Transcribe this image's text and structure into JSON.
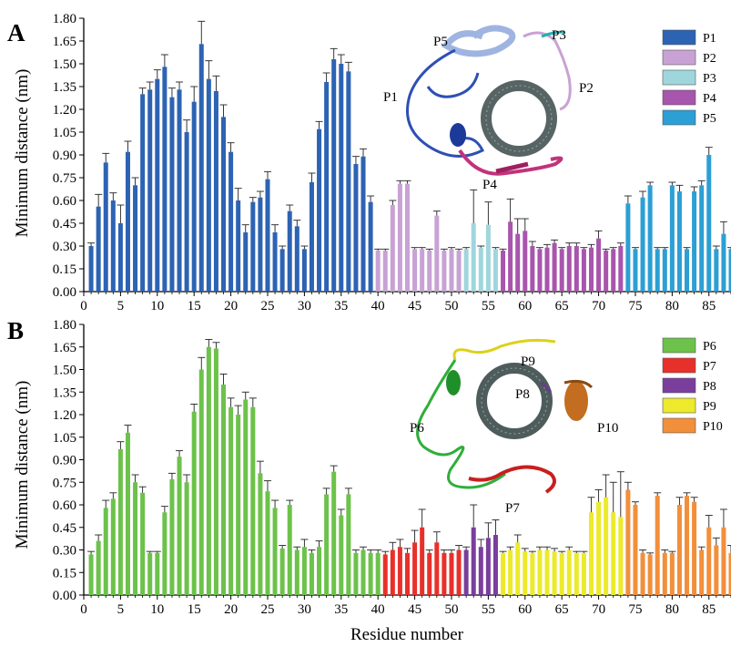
{
  "figure": {
    "xlabel": "Residue number",
    "ylabel": "Minimum distance (nm)"
  },
  "chart_data": [
    {
      "panel": "A",
      "type": "bar",
      "ylabel": "Minimum distance (nm)",
      "xlim": [
        0,
        88
      ],
      "ylim": [
        0,
        1.8
      ],
      "xticks": [
        0,
        5,
        10,
        15,
        20,
        25,
        30,
        35,
        40,
        45,
        50,
        55,
        60,
        65,
        70,
        75,
        80,
        85
      ],
      "yticks": [
        "0.00",
        "0.15",
        "0.30",
        "0.45",
        "0.60",
        "0.75",
        "0.90",
        "1.05",
        "1.20",
        "1.35",
        "1.50",
        "1.65",
        "1.80"
      ],
      "series": [
        {
          "name": "P1",
          "color": "#2d63b3",
          "x": [
            1,
            2,
            3,
            4,
            5,
            6,
            7,
            8,
            9,
            10,
            11,
            12,
            13,
            14,
            15,
            16,
            17,
            18,
            19,
            20,
            21,
            22,
            23,
            24,
            25,
            26,
            27,
            28,
            29,
            30,
            31,
            32,
            33,
            34,
            35,
            36,
            37,
            38,
            39
          ],
          "values": [
            0.3,
            0.56,
            0.85,
            0.6,
            0.45,
            0.92,
            0.7,
            1.3,
            1.33,
            1.4,
            1.48,
            1.28,
            1.33,
            1.05,
            1.25,
            1.63,
            1.4,
            1.32,
            1.15,
            0.92,
            0.6,
            0.39,
            0.59,
            0.62,
            0.74,
            0.39,
            0.28,
            0.53,
            0.43,
            0.28,
            0.72,
            1.07,
            1.38,
            1.53,
            1.5,
            1.45,
            0.84,
            0.89,
            0.59
          ],
          "errors": [
            0.02,
            0.08,
            0.06,
            0.05,
            0.12,
            0.07,
            0.05,
            0.04,
            0.05,
            0.06,
            0.08,
            0.06,
            0.05,
            0.08,
            0.1,
            0.15,
            0.12,
            0.1,
            0.08,
            0.06,
            0.08,
            0.05,
            0.03,
            0.04,
            0.05,
            0.05,
            0.02,
            0.04,
            0.04,
            0.02,
            0.06,
            0.05,
            0.06,
            0.07,
            0.06,
            0.06,
            0.05,
            0.05,
            0.04
          ]
        },
        {
          "name": "P2",
          "color": "#c8a2d4",
          "x": [
            40,
            41,
            42,
            43,
            44,
            45,
            46,
            47,
            48,
            49,
            50,
            51
          ],
          "values": [
            0.27,
            0.27,
            0.57,
            0.71,
            0.71,
            0.28,
            0.28,
            0.27,
            0.5,
            0.27,
            0.28,
            0.27
          ],
          "errors": [
            0.01,
            0.01,
            0.03,
            0.02,
            0.02,
            0.01,
            0.01,
            0.01,
            0.03,
            0.01,
            0.01,
            0.01
          ]
        },
        {
          "name": "P3",
          "color": "#9fd6dc",
          "x": [
            52,
            53,
            54,
            55,
            56
          ],
          "values": [
            0.28,
            0.45,
            0.29,
            0.44,
            0.28
          ],
          "errors": [
            0.01,
            0.22,
            0.01,
            0.15,
            0.01
          ]
        },
        {
          "name": "P4",
          "color": "#a855ad",
          "x": [
            57,
            58,
            59,
            60,
            61,
            62,
            63,
            64,
            65,
            66,
            67,
            68,
            69,
            70,
            71,
            72,
            73
          ],
          "values": [
            0.27,
            0.46,
            0.38,
            0.4,
            0.3,
            0.28,
            0.29,
            0.32,
            0.28,
            0.3,
            0.3,
            0.28,
            0.29,
            0.35,
            0.27,
            0.28,
            0.3
          ],
          "errors": [
            0.01,
            0.15,
            0.1,
            0.08,
            0.03,
            0.01,
            0.02,
            0.02,
            0.01,
            0.02,
            0.02,
            0.01,
            0.02,
            0.05,
            0.01,
            0.01,
            0.02
          ]
        },
        {
          "name": "P5",
          "color": "#2c9fd4",
          "x": [
            74,
            75,
            76,
            77,
            78,
            79,
            80,
            81,
            82,
            83,
            84,
            85,
            86,
            87,
            88
          ],
          "values": [
            0.58,
            0.28,
            0.62,
            0.7,
            0.28,
            0.28,
            0.7,
            0.66,
            0.28,
            0.66,
            0.7,
            0.9,
            0.28,
            0.38,
            0.28
          ],
          "errors": [
            0.05,
            0.01,
            0.04,
            0.02,
            0.01,
            0.01,
            0.02,
            0.04,
            0.01,
            0.03,
            0.03,
            0.05,
            0.02,
            0.08,
            0.01
          ]
        }
      ],
      "legend": [
        "P1",
        "P2",
        "P3",
        "P4",
        "P5"
      ],
      "annotations": [
        "P5",
        "P3",
        "P1",
        "P2",
        "P4"
      ]
    },
    {
      "panel": "B",
      "type": "bar",
      "xlabel": "Residue number",
      "ylabel": "Minimum distance (nm)",
      "xlim": [
        0,
        88
      ],
      "ylim": [
        0,
        1.8
      ],
      "xticks": [
        0,
        5,
        10,
        15,
        20,
        25,
        30,
        35,
        40,
        45,
        50,
        55,
        60,
        65,
        70,
        75,
        80,
        85
      ],
      "yticks": [
        "0.00",
        "0.15",
        "0.30",
        "0.45",
        "0.60",
        "0.75",
        "0.90",
        "1.05",
        "1.20",
        "1.35",
        "1.50",
        "1.65",
        "1.80"
      ],
      "series": [
        {
          "name": "P6",
          "color": "#6cc24a",
          "x": [
            1,
            2,
            3,
            4,
            5,
            6,
            7,
            8,
            9,
            10,
            11,
            12,
            13,
            14,
            15,
            16,
            17,
            18,
            19,
            20,
            21,
            22,
            23,
            24,
            25,
            26,
            27,
            28,
            29,
            30,
            31,
            32,
            33,
            34,
            35,
            36,
            37,
            38,
            39,
            40
          ],
          "values": [
            0.27,
            0.36,
            0.58,
            0.64,
            0.97,
            1.08,
            0.75,
            0.68,
            0.28,
            0.28,
            0.55,
            0.77,
            0.92,
            0.75,
            1.22,
            1.5,
            1.65,
            1.64,
            1.4,
            1.25,
            1.2,
            1.3,
            1.25,
            0.81,
            0.69,
            0.58,
            0.31,
            0.6,
            0.3,
            0.32,
            0.28,
            0.32,
            0.67,
            0.82,
            0.53,
            0.67,
            0.28,
            0.3,
            0.28,
            0.28
          ],
          "errors": [
            0.02,
            0.04,
            0.05,
            0.04,
            0.05,
            0.05,
            0.05,
            0.04,
            0.01,
            0.01,
            0.04,
            0.04,
            0.04,
            0.05,
            0.05,
            0.08,
            0.05,
            0.04,
            0.07,
            0.06,
            0.06,
            0.05,
            0.06,
            0.08,
            0.07,
            0.05,
            0.02,
            0.03,
            0.02,
            0.05,
            0.02,
            0.04,
            0.04,
            0.04,
            0.04,
            0.04,
            0.02,
            0.02,
            0.02,
            0.02
          ]
        },
        {
          "name": "P7",
          "color": "#e8302b",
          "x": [
            41,
            42,
            43,
            44,
            45,
            46,
            47,
            48,
            49,
            50,
            51
          ],
          "values": [
            0.27,
            0.3,
            0.32,
            0.28,
            0.35,
            0.45,
            0.28,
            0.35,
            0.28,
            0.28,
            0.3
          ],
          "errors": [
            0.02,
            0.05,
            0.05,
            0.03,
            0.08,
            0.12,
            0.02,
            0.07,
            0.02,
            0.02,
            0.03
          ]
        },
        {
          "name": "P8",
          "color": "#7a3e9d",
          "x": [
            52,
            53,
            54,
            55,
            56
          ],
          "values": [
            0.3,
            0.45,
            0.32,
            0.38,
            0.4
          ],
          "errors": [
            0.02,
            0.15,
            0.05,
            0.1,
            0.1
          ]
        },
        {
          "name": "P9",
          "color": "#ecea2a",
          "x": [
            57,
            58,
            59,
            60,
            61,
            62,
            63,
            64,
            65,
            66,
            67,
            68,
            69,
            70,
            71,
            72,
            73
          ],
          "values": [
            0.28,
            0.3,
            0.35,
            0.29,
            0.28,
            0.3,
            0.3,
            0.29,
            0.28,
            0.3,
            0.28,
            0.28,
            0.55,
            0.62,
            0.65,
            0.55,
            0.52
          ],
          "errors": [
            0.01,
            0.02,
            0.05,
            0.02,
            0.01,
            0.02,
            0.02,
            0.02,
            0.01,
            0.02,
            0.01,
            0.01,
            0.1,
            0.08,
            0.15,
            0.2,
            0.3
          ]
        },
        {
          "name": "P10",
          "color": "#f28f3b",
          "x": [
            74,
            75,
            76,
            77,
            78,
            79,
            80,
            81,
            82,
            83,
            84,
            85,
            86,
            87,
            88
          ],
          "values": [
            0.7,
            0.6,
            0.28,
            0.27,
            0.66,
            0.28,
            0.28,
            0.6,
            0.66,
            0.62,
            0.3,
            0.45,
            0.33,
            0.45,
            0.28
          ],
          "errors": [
            0.05,
            0.02,
            0.02,
            0.01,
            0.02,
            0.02,
            0.01,
            0.05,
            0.02,
            0.03,
            0.02,
            0.08,
            0.05,
            0.12,
            0.05
          ]
        }
      ],
      "legend": [
        "P6",
        "P7",
        "P8",
        "P9",
        "P10"
      ],
      "annotations": [
        "P9",
        "P8",
        "P6",
        "P10",
        "P7"
      ]
    }
  ]
}
